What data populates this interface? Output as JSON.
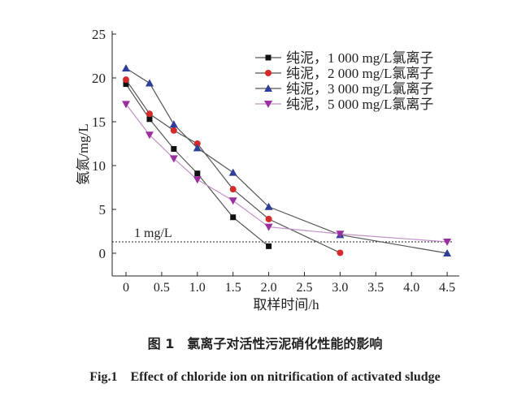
{
  "chart_data": {
    "type": "line",
    "xlabel": "取样时间/h",
    "ylabel": "氨氮/mg/L",
    "xlim": [
      -0.2,
      4.6
    ],
    "ylim": [
      -3,
      25
    ],
    "xticks": [
      0,
      0.5,
      1.0,
      1.5,
      2.0,
      2.5,
      3.0,
      3.5,
      4.0,
      4.5
    ],
    "xtick_labels": [
      "0",
      "0.5",
      "1.0",
      "1.5",
      "2.0",
      "2.5",
      "3.0",
      "3.5",
      "4.0",
      "4.5"
    ],
    "yticks": [
      0,
      5,
      10,
      15,
      20,
      25
    ],
    "ytick_labels": [
      "0",
      "5",
      "10",
      "15",
      "20",
      "25"
    ],
    "legend_position": "top-right",
    "reference_line": {
      "y": 1.3,
      "label": "1 mg/L"
    },
    "series": [
      {
        "name": "纯泥，1 000 mg/L氯离子",
        "color": "#111111",
        "line": "#555555",
        "marker": "square",
        "x": [
          0,
          0.33,
          0.67,
          1.0,
          1.5,
          2.0
        ],
        "y": [
          19.3,
          15.3,
          11.9,
          9.1,
          4.1,
          0.8
        ]
      },
      {
        "name": "纯泥，2 000 mg/L氯离子",
        "color": "#d42a2a",
        "line": "#555555",
        "marker": "circle",
        "x": [
          0,
          0.33,
          0.67,
          1.0,
          1.5,
          2.0,
          3.0
        ],
        "y": [
          19.8,
          15.9,
          14.0,
          12.5,
          7.3,
          3.9,
          0.05
        ]
      },
      {
        "name": "纯泥，3 000 mg/L氯离子",
        "color": "#2e3f9a",
        "line": "#555555",
        "marker": "triangle-up",
        "x": [
          0,
          0.33,
          0.67,
          1.0,
          1.5,
          2.0,
          3.0,
          4.5
        ],
        "y": [
          21.1,
          19.4,
          14.7,
          12.0,
          9.2,
          5.3,
          2.1,
          0.0
        ]
      },
      {
        "name": "纯泥，5 000 mg/L氯离子",
        "color": "#9b2fa0",
        "line": "#c28fc6",
        "marker": "triangle-down",
        "x": [
          0,
          0.33,
          0.67,
          1.0,
          1.5,
          2.0,
          3.0,
          4.5
        ],
        "y": [
          17.0,
          13.5,
          10.8,
          8.4,
          6.0,
          3.0,
          2.2,
          1.3
        ]
      }
    ]
  },
  "caption": {
    "cn": "图 1　氯离子对活性污泥硝化性能的影响",
    "en": "Fig.1　Effect of chloride ion on nitrification of activated sludge"
  }
}
